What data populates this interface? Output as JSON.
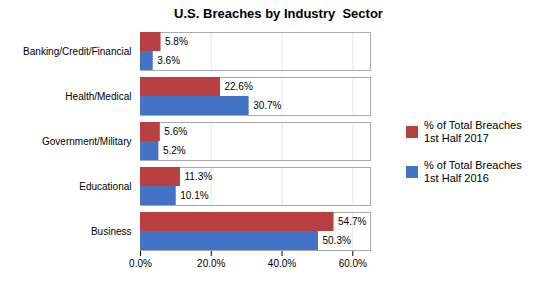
{
  "chart_data": {
    "type": "bar",
    "orientation": "horizontal",
    "title": "U.S. Breaches by Industry  Sector",
    "categories": [
      "Business",
      "Educational",
      "Government/Military",
      "Health/Medical",
      "Banking/Credit/Financial"
    ],
    "series": [
      {
        "name": "% of Total Breaches\n1st Half 2017",
        "color": "#b94040",
        "values": [
          54.7,
          11.3,
          5.6,
          22.6,
          5.8
        ],
        "value_labels": [
          "54.7%",
          "11.3%",
          "5.6%",
          "22.6%",
          "5.8%"
        ]
      },
      {
        "name": "% of Total Breaches\n1st Half 2016",
        "color": "#4472c4",
        "values": [
          50.3,
          10.1,
          5.2,
          30.7,
          3.6
        ],
        "value_labels": [
          "50.3%",
          "10.1%",
          "5.2%",
          "30.7%",
          "3.6%"
        ]
      }
    ],
    "xlim": [
      0,
      65
    ],
    "xticks": [
      {
        "value": 0,
        "label": "0.0%"
      },
      {
        "value": 20,
        "label": "20.0%"
      },
      {
        "value": 40,
        "label": "40.0%"
      },
      {
        "value": 60,
        "label": "60.0%"
      }
    ],
    "grid": true,
    "legend": "right",
    "data_labels": true
  }
}
